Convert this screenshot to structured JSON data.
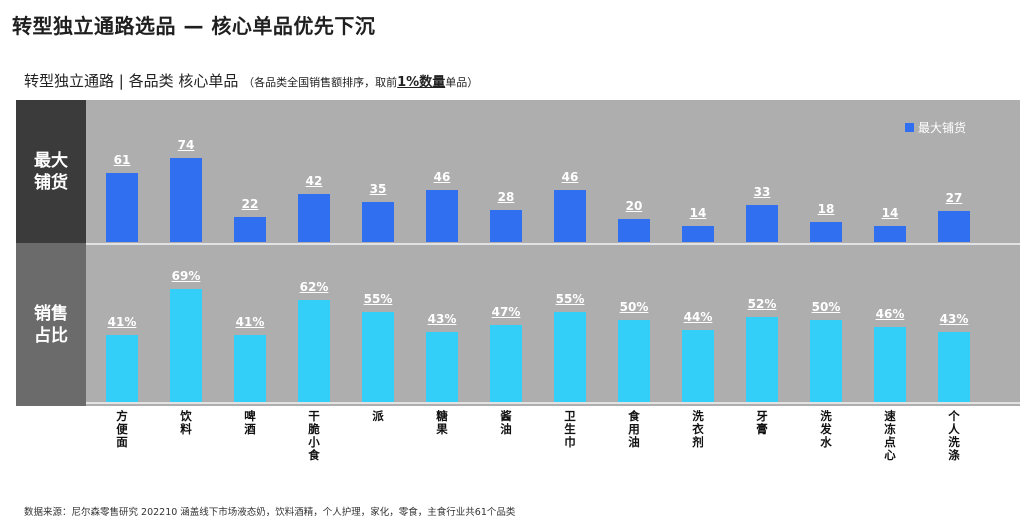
{
  "header": {
    "title": "转型独立通路选品 — 核心单品优先下沉",
    "subtitle_main": "转型独立通路 | 各品类 核心单品",
    "subtitle_note_prefix": "（各品类全国销售额排序，取前",
    "subtitle_note_emphasis": "1%数量",
    "subtitle_note_suffix": "单品）"
  },
  "row_labels": {
    "top": "最大铺货",
    "bottom": "销售占比"
  },
  "legend": {
    "label": "最大铺货",
    "color": "#2f6ff0"
  },
  "colors": {
    "top_bar": "#2f6ff0",
    "bottom_bar": "#34cff8",
    "panel": "#aeaeae"
  },
  "chart_data": [
    {
      "type": "bar",
      "categories": [
        "方便面",
        "饮料",
        "啤酒",
        "干脆小食",
        "派",
        "糖果",
        "酱油",
        "卫生巾",
        "食用油",
        "洗衣剂",
        "牙膏",
        "洗发水",
        "速冻点心",
        "个人洗涤"
      ],
      "series": [
        {
          "name": "最大铺货",
          "values": [
            61,
            74,
            22,
            42,
            35,
            46,
            28,
            46,
            20,
            14,
            33,
            18,
            14,
            27
          ]
        }
      ],
      "value_labels": [
        "61",
        "74",
        "22",
        "42",
        "35",
        "46",
        "28",
        "46",
        "20",
        "14",
        "33",
        "18",
        "14",
        "27"
      ],
      "ylim": [
        0,
        80
      ]
    },
    {
      "type": "bar",
      "categories": [
        "方便面",
        "饮料",
        "啤酒",
        "干脆小食",
        "派",
        "糖果",
        "酱油",
        "卫生巾",
        "食用油",
        "洗衣剂",
        "牙膏",
        "洗发水",
        "速冻点心",
        "个人洗涤"
      ],
      "series": [
        {
          "values": [
            41,
            69,
            41,
            62,
            55,
            43,
            47,
            55,
            50,
            44,
            52,
            50,
            46,
            43
          ]
        }
      ],
      "value_labels": [
        "41%",
        "69%",
        "41%",
        "62%",
        "55%",
        "43%",
        "47%",
        "55%",
        "50%",
        "44%",
        "52%",
        "50%",
        "46%",
        "43%"
      ],
      "ylim": [
        0,
        80
      ]
    }
  ],
  "footer": {
    "source": "数据来源：尼尔森零售研究 202210 涵盖线下市场液态奶，饮料酒精，个人护理，家化，零食，主食行业共61个品类"
  }
}
